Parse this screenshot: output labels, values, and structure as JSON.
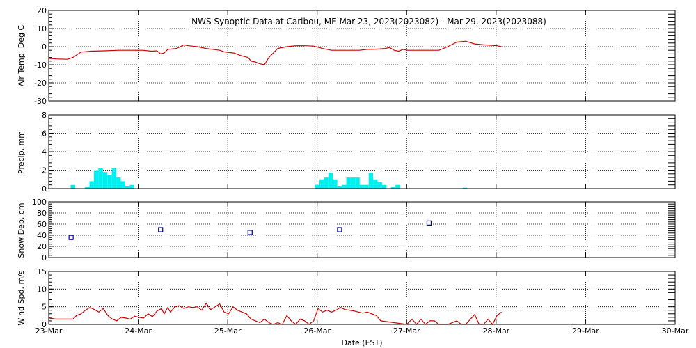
{
  "colors": {
    "air_temp": "#cc0000",
    "precip": "#00f0f0",
    "snow_depth": "#000099",
    "wind_speed": "#cc0000",
    "axes": "#000000"
  },
  "chart_data": {
    "type": "line",
    "title": "NWS Synoptic Data at Caribou, ME   Mar 23, 2023(2023082) - Mar 29, 2023(2023088)",
    "xlabel": "Date (EST)",
    "x_unit": "days since 23-Mar 00:00 EST",
    "x_range": [
      0,
      7
    ],
    "x_ticks": [
      "23-Mar",
      "24-Mar",
      "25-Mar",
      "26-Mar",
      "27-Mar",
      "28-Mar",
      "29-Mar",
      "30-Mar"
    ],
    "grid": true,
    "panels": [
      {
        "name": "air_temp",
        "type": "line",
        "ylabel": "Air Temp, Deg C",
        "ylim": [
          -30,
          20
        ],
        "y_ticks": [
          "-30",
          "-20",
          "-10",
          "0",
          "10",
          "20"
        ],
        "series": [
          {
            "x": [
              0,
              0.08,
              0.21,
              0.27,
              0.36,
              0.47,
              0.62,
              0.78,
              0.98,
              1.05,
              1.15,
              1.21,
              1.25,
              1.29,
              1.33,
              1.43,
              1.47,
              1.51,
              1.56,
              1.66,
              1.76,
              1.91,
              1.97,
              2.07,
              2.15,
              2.23,
              2.26,
              2.31,
              2.36,
              2.41,
              2.46,
              2.56,
              2.66,
              2.76,
              2.86,
              2.96,
              3.06,
              3.16,
              3.36,
              3.47,
              3.56,
              3.66,
              3.76,
              3.81,
              3.86,
              3.91,
              3.96,
              4.01,
              4.11,
              4.26,
              4.36,
              4.46,
              4.56,
              4.66,
              4.76,
              4.86,
              5.01,
              5.06
            ],
            "y": [
              -6.5,
              -6.8,
              -7,
              -6,
              -3,
              -2.5,
              -2.3,
              -2,
              -2,
              -2,
              -2.5,
              -2.3,
              -4,
              -3.5,
              -1.5,
              -1,
              0,
              1,
              0.5,
              0,
              -1,
              -2,
              -3,
              -3.5,
              -5,
              -6,
              -8,
              -8.5,
              -9.5,
              -10,
              -6,
              -1,
              0,
              0.5,
              0.5,
              0.3,
              -1,
              -2,
              -2,
              -2,
              -1.5,
              -1.4,
              -1,
              -0.5,
              -2,
              -2.5,
              -1.5,
              -2,
              -2,
              -2,
              -2,
              0,
              2.5,
              3,
              1.5,
              1,
              0.5,
              0
            ]
          }
        ]
      },
      {
        "name": "precip",
        "type": "bar",
        "ylabel": "Precip, mm",
        "ylim": [
          0,
          8
        ],
        "y_ticks": [
          "0",
          "2",
          "4",
          "6",
          "8"
        ],
        "bar_width": 0.05,
        "series": [
          {
            "x": [
              0.27,
              0.43,
              0.48,
              0.53,
              0.58,
              0.63,
              0.68,
              0.73,
              0.78,
              0.83,
              0.88,
              0.93,
              3.0,
              3.05,
              3.1,
              3.15,
              3.2,
              3.25,
              3.3,
              3.35,
              3.4,
              3.45,
              3.5,
              3.55,
              3.6,
              3.65,
              3.7,
              3.75,
              3.85,
              3.9,
              4.65
            ],
            "y": [
              0.4,
              0.2,
              0.8,
              2.0,
              2.2,
              1.8,
              1.5,
              2.2,
              1.2,
              0.8,
              0.3,
              0.4,
              0.4,
              1.0,
              1.2,
              1.7,
              1.0,
              0.3,
              0.4,
              1.2,
              1.2,
              1.2,
              0.4,
              0.4,
              1.7,
              1.0,
              0.7,
              0.4,
              0.2,
              0.4,
              0.1
            ]
          }
        ]
      },
      {
        "name": "snow_depth",
        "type": "scatter",
        "ylabel": "Snow Dep, cm",
        "ylim": [
          0,
          100
        ],
        "y_ticks": [
          "0",
          "20",
          "40",
          "60",
          "80",
          "100"
        ],
        "series": [
          {
            "x": [
              0.25,
              1.25,
              2.25,
              3.25,
              4.25
            ],
            "y": [
              36,
              50,
              45,
              50,
              62
            ]
          }
        ]
      },
      {
        "name": "wind_speed",
        "type": "line",
        "ylabel": "Wind Spd, m/s",
        "ylim": [
          0,
          15
        ],
        "y_ticks": [
          "0",
          "5",
          "10",
          "15"
        ],
        "series": [
          {
            "x": [
              0,
              0.08,
              0.21,
              0.27,
              0.31,
              0.36,
              0.41,
              0.46,
              0.51,
              0.56,
              0.61,
              0.66,
              0.71,
              0.76,
              0.81,
              0.86,
              0.91,
              0.96,
              1.01,
              1.06,
              1.11,
              1.16,
              1.21,
              1.26,
              1.29,
              1.33,
              1.36,
              1.41,
              1.46,
              1.51,
              1.56,
              1.61,
              1.66,
              1.71,
              1.76,
              1.81,
              1.86,
              1.91,
              1.96,
              2.01,
              2.06,
              2.11,
              2.16,
              2.21,
              2.26,
              2.31,
              2.36,
              2.41,
              2.46,
              2.51,
              2.56,
              2.61,
              2.66,
              2.71,
              2.76,
              2.81,
              2.86,
              2.91,
              2.96,
              3.01,
              3.06,
              3.11,
              3.16,
              3.21,
              3.26,
              3.31,
              3.36,
              3.41,
              3.46,
              3.51,
              3.56,
              3.61,
              3.66,
              3.71,
              4.0,
              4.06,
              4.11,
              4.16,
              4.21,
              4.26,
              4.31,
              4.36,
              4.41,
              4.46,
              4.56,
              4.61,
              4.66,
              4.76,
              4.81,
              4.86,
              4.91,
              4.96,
              5.01,
              5.06
            ],
            "y": [
              1.8,
              1.5,
              1.5,
              1.5,
              2.5,
              3,
              4,
              4.8,
              4.2,
              3.5,
              4.5,
              2.5,
              1.5,
              1,
              2,
              1.8,
              1.5,
              2.3,
              2.0,
              1.8,
              3.0,
              2.2,
              3.8,
              4.5,
              3.0,
              4.8,
              3.5,
              5.0,
              5.3,
              4.5,
              5.0,
              4.8,
              5.0,
              4.0,
              6.0,
              4.2,
              5.0,
              5.8,
              3.5,
              3.0,
              5.0,
              4.0,
              3.5,
              3.0,
              1.5,
              1.0,
              0.5,
              1.5,
              0.5,
              0,
              0.5,
              0,
              2.5,
              1.0,
              0,
              1.5,
              1.0,
              0,
              1.0,
              4.5,
              3.5,
              4.0,
              3.5,
              4.0,
              4.8,
              4.2,
              4.0,
              3.8,
              3.5,
              3.2,
              3.5,
              3.0,
              2.5,
              1.0,
              0,
              1.5,
              0,
              1.5,
              0,
              1.0,
              1.0,
              0,
              0,
              0,
              1.0,
              0,
              0,
              2.8,
              0,
              0,
              1.5,
              0,
              2.5,
              3.5
            ]
          }
        ]
      }
    ]
  }
}
